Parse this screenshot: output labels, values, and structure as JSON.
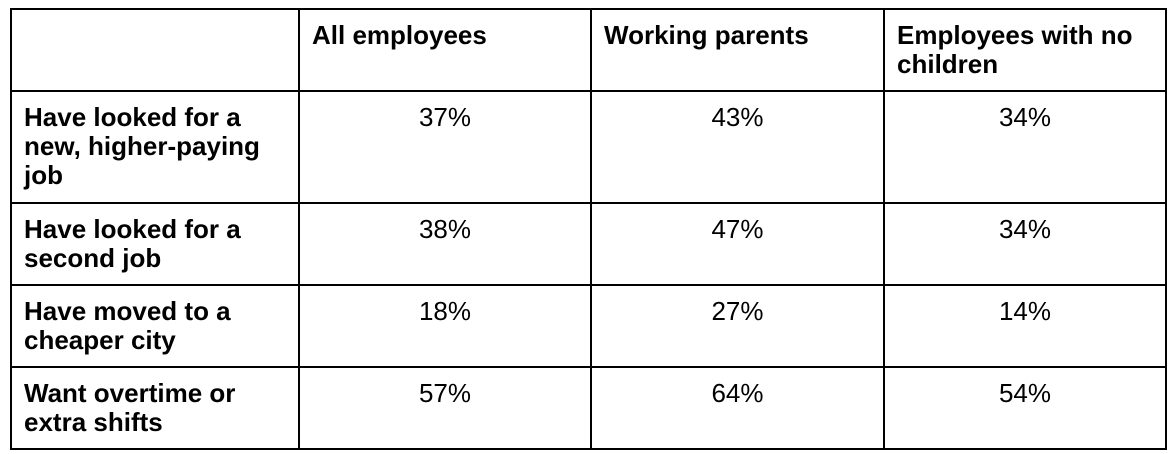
{
  "colors": {
    "border": "#000000",
    "background": "#ffffff",
    "text": "#000000"
  },
  "table": {
    "corner_label": "",
    "column_headers": [
      "All employees",
      "Working parents",
      "Employees with no children"
    ],
    "rows": [
      {
        "label": "Have looked for a new, higher-paying job",
        "values": [
          "37%",
          "43%",
          "34%"
        ]
      },
      {
        "label": "Have looked for a second job",
        "values": [
          "38%",
          "47%",
          "34%"
        ]
      },
      {
        "label": "Have moved to a cheaper city",
        "values": [
          "18%",
          "27%",
          "14%"
        ]
      },
      {
        "label": "Want overtime or extra shifts",
        "values": [
          "57%",
          "64%",
          "54%"
        ]
      }
    ]
  },
  "chart_data": {
    "type": "table",
    "categories": [
      "Have looked for a new, higher-paying job",
      "Have looked for a second job",
      "Have moved to a cheaper city",
      "Want overtime or extra shifts"
    ],
    "series": [
      {
        "name": "All employees",
        "values": [
          37,
          38,
          18,
          57
        ]
      },
      {
        "name": "Working parents",
        "values": [
          43,
          47,
          27,
          64
        ]
      },
      {
        "name": "Employees with no children",
        "values": [
          34,
          34,
          14,
          54
        ]
      }
    ],
    "value_unit": "%",
    "title": "",
    "layout": "row-categories, column-series, bold headers, black 2px grid borders, white background"
  }
}
